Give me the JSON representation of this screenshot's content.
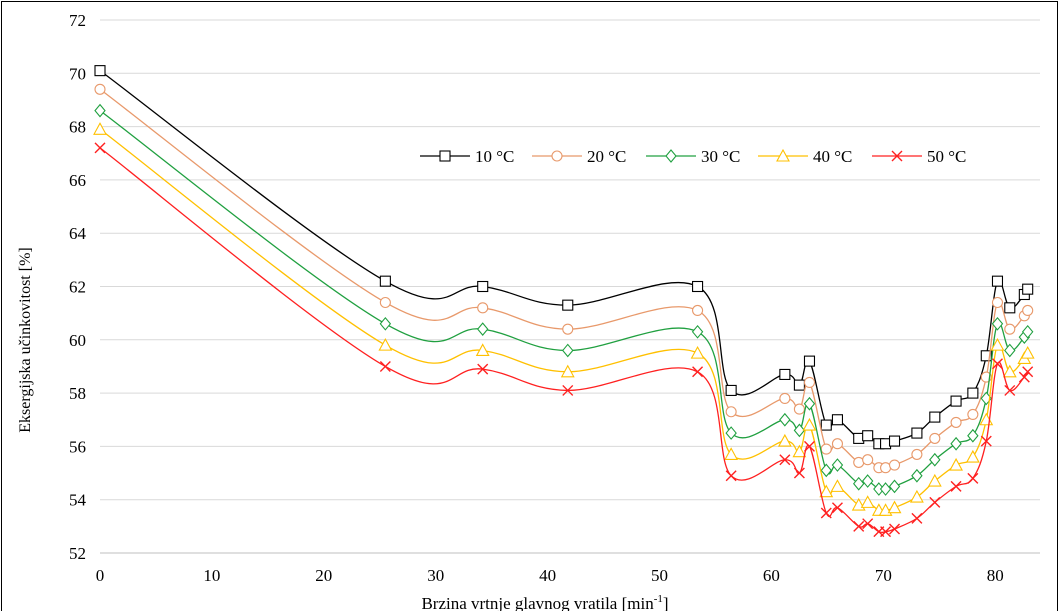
{
  "chart_data": {
    "type": "line",
    "title": "",
    "xlabel": "Brzina vrtnje glavnog vratila [min",
    "xlabel_sup": "-1",
    "xlabel_end": "]",
    "ylabel": "Eksergijska učinkovitost [%]",
    "xlim": [
      0,
      84
    ],
    "ylim": [
      52,
      72
    ],
    "xticks": [
      0,
      10,
      20,
      30,
      40,
      50,
      60,
      70,
      80
    ],
    "yticks": [
      52,
      54,
      56,
      58,
      60,
      62,
      64,
      66,
      68,
      70,
      72
    ],
    "grid": "horizontal",
    "legend_position": "top-right",
    "x": [
      0,
      25.5,
      34.2,
      41.8,
      53.4,
      56.4,
      61.2,
      62.5,
      63.4,
      64.9,
      65.9,
      67.8,
      68.6,
      69.6,
      70.2,
      71.0,
      73.0,
      74.6,
      76.5,
      78.0,
      79.2,
      80.2,
      81.3,
      82.6,
      82.9
    ],
    "series": [
      {
        "name": "10 °C",
        "color": "#000000",
        "marker": "square",
        "values": [
          70.1,
          62.2,
          62.0,
          61.3,
          62.0,
          58.1,
          58.7,
          58.3,
          59.2,
          56.8,
          57.0,
          56.3,
          56.4,
          56.1,
          56.1,
          56.2,
          56.5,
          57.1,
          57.7,
          58.0,
          59.4,
          62.2,
          61.2,
          61.7,
          61.9
        ]
      },
      {
        "name": "20 °C",
        "color": "#E8996B",
        "marker": "circle",
        "values": [
          69.4,
          61.4,
          61.2,
          60.4,
          61.1,
          57.3,
          57.8,
          57.4,
          58.4,
          55.9,
          56.1,
          55.4,
          55.5,
          55.2,
          55.2,
          55.3,
          55.7,
          56.3,
          56.9,
          57.2,
          58.6,
          61.4,
          60.4,
          60.9,
          61.1
        ]
      },
      {
        "name": "30 °C",
        "color": "#20A040",
        "marker": "diamond",
        "values": [
          68.6,
          60.6,
          60.4,
          59.6,
          60.3,
          56.5,
          57.0,
          56.6,
          57.6,
          55.1,
          55.3,
          54.6,
          54.7,
          54.4,
          54.4,
          54.5,
          54.9,
          55.5,
          56.1,
          56.4,
          57.8,
          60.6,
          59.6,
          60.1,
          60.3
        ]
      },
      {
        "name": "40 °C",
        "color": "#FFC000",
        "marker": "triangle",
        "values": [
          67.9,
          59.8,
          59.6,
          58.8,
          59.5,
          55.7,
          56.2,
          55.8,
          56.8,
          54.3,
          54.5,
          53.8,
          53.9,
          53.6,
          53.6,
          53.7,
          54.1,
          54.7,
          55.3,
          55.6,
          57.0,
          59.8,
          58.8,
          59.3,
          59.5
        ]
      },
      {
        "name": "50 °C",
        "color": "#FF2020",
        "marker": "x",
        "values": [
          67.2,
          59.0,
          58.9,
          58.1,
          58.8,
          54.9,
          55.5,
          55.0,
          56.0,
          53.5,
          53.7,
          53.0,
          53.1,
          52.8,
          52.8,
          52.9,
          53.3,
          53.9,
          54.5,
          54.8,
          56.2,
          59.1,
          58.1,
          58.6,
          58.8
        ]
      }
    ]
  }
}
